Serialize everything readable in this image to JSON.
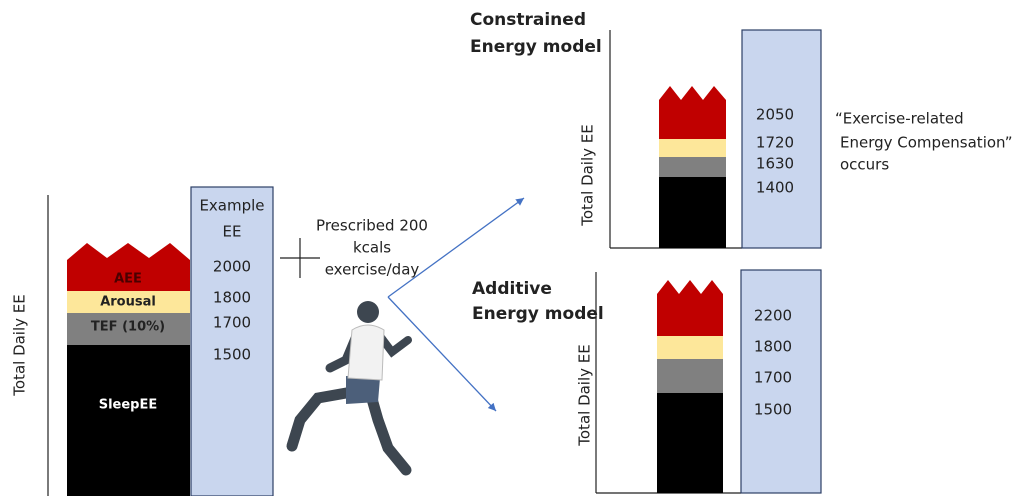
{
  "left_panel": {
    "axis_label": "Total Daily EE",
    "layers": [
      "AEE",
      "Arousal",
      "TEF (10%)",
      "SleepEE"
    ],
    "example_box": {
      "title_lines": [
        "Example",
        "EE"
      ],
      "values": [
        2000,
        1800,
        1700,
        1500
      ]
    }
  },
  "middle": {
    "lines": [
      "Prescribed 200",
      "kcals",
      "exercise/day"
    ]
  },
  "constrained": {
    "title_lines": [
      "Constrained",
      "Energy model"
    ],
    "axis_label": "Total Daily EE",
    "values": [
      2050,
      1720,
      1630,
      1400
    ],
    "note_lines": [
      "“Exercise-related",
      "Energy Compensation”",
      "occurs"
    ]
  },
  "additive": {
    "title_lines": [
      "Additive",
      "Energy model"
    ],
    "axis_label": "Total Daily EE",
    "values": [
      2200,
      1800,
      1700,
      1500
    ]
  }
}
